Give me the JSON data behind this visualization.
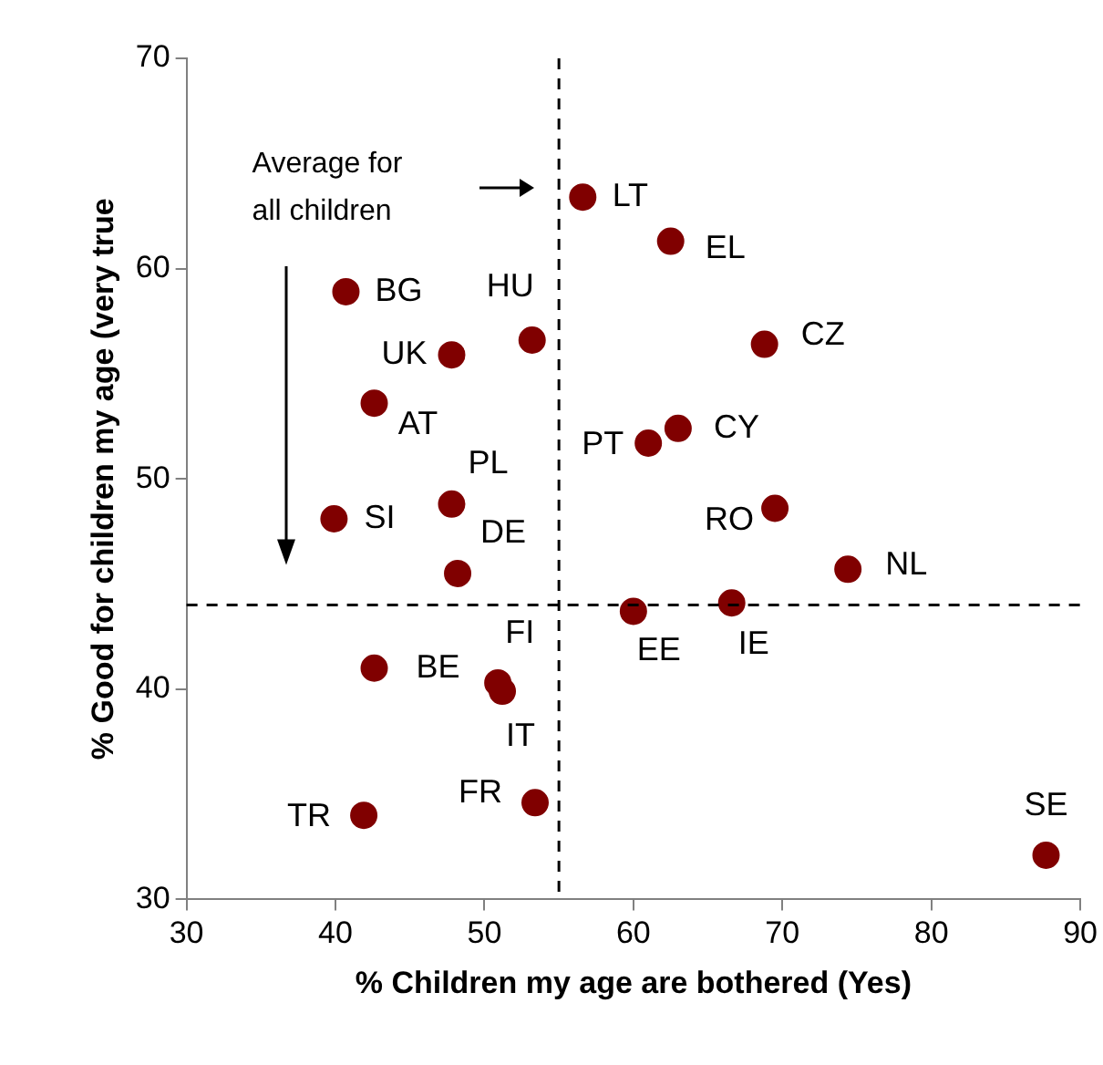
{
  "chart_data": {
    "type": "scatter",
    "xlabel": "% Children my age are bothered (Yes)",
    "ylabel": "% Good for children my age (very true",
    "xlim": [
      30,
      90
    ],
    "xticks": [
      30,
      40,
      50,
      60,
      70,
      80,
      90
    ],
    "ylim": [
      30,
      70
    ],
    "yticks": [
      30,
      40,
      50,
      60,
      70
    ],
    "grid": false,
    "legend": false,
    "marker": "circle",
    "series": [
      {
        "color": "#800000",
        "x": [
          56.6,
          62.5,
          68.8,
          53.2,
          40.7,
          47.8,
          42.6,
          47.8,
          39.9,
          48.2,
          61.0,
          63.0,
          69.5,
          74.4,
          60.0,
          66.6,
          42.6,
          50.9,
          51.2,
          53.4,
          41.9,
          87.7
        ],
        "values": [
          63.4,
          61.3,
          56.4,
          56.6,
          58.9,
          55.9,
          53.6,
          48.8,
          48.1,
          45.5,
          51.7,
          52.4,
          48.6,
          45.7,
          43.7,
          44.1,
          41.0,
          40.3,
          39.9,
          34.6,
          34.0,
          32.1
        ]
      }
    ],
    "ref_lines": [
      {
        "axis": "x",
        "value": 55,
        "line_style": "dashed",
        "color": "#000000"
      },
      {
        "axis": "y",
        "value": 44,
        "line_style": "dashed",
        "color": "#000000"
      }
    ],
    "annotations": [
      "Average for all children",
      {
        "text": "LT",
        "x": 56.6,
        "y": 63.4
      },
      {
        "text": "EL",
        "x": 62.5,
        "y": 61.3
      },
      {
        "text": "CZ",
        "x": 68.8,
        "y": 56.4
      },
      {
        "text": "HU",
        "x": 53.2,
        "y": 56.6
      },
      {
        "text": "BG",
        "x": 40.7,
        "y": 58.9
      },
      {
        "text": "UK",
        "x": 47.8,
        "y": 55.9
      },
      {
        "text": "AT",
        "x": 42.6,
        "y": 53.6
      },
      {
        "text": "PL",
        "x": 47.8,
        "y": 48.8
      },
      {
        "text": "SI",
        "x": 39.9,
        "y": 48.1
      },
      {
        "text": "DE",
        "x": 48.2,
        "y": 45.5
      },
      {
        "text": "PT",
        "x": 61.0,
        "y": 51.7
      },
      {
        "text": "CY",
        "x": 63.0,
        "y": 52.4
      },
      {
        "text": "RO",
        "x": 69.5,
        "y": 48.6
      },
      {
        "text": "NL",
        "x": 74.4,
        "y": 45.7
      },
      {
        "text": "EE",
        "x": 60.0,
        "y": 43.7
      },
      {
        "text": "IE",
        "x": 66.6,
        "y": 44.1
      },
      {
        "text": "BE",
        "x": 42.6,
        "y": 41.0
      },
      {
        "text": "FI",
        "x": 50.9,
        "y": 40.3
      },
      {
        "text": "IT",
        "x": 51.2,
        "y": 39.9
      },
      {
        "text": "FR",
        "x": 53.4,
        "y": 34.6
      },
      {
        "text": "TR",
        "x": 41.9,
        "y": 34.0
      },
      {
        "text": "SE",
        "x": 87.7,
        "y": 32.1
      }
    ]
  }
}
